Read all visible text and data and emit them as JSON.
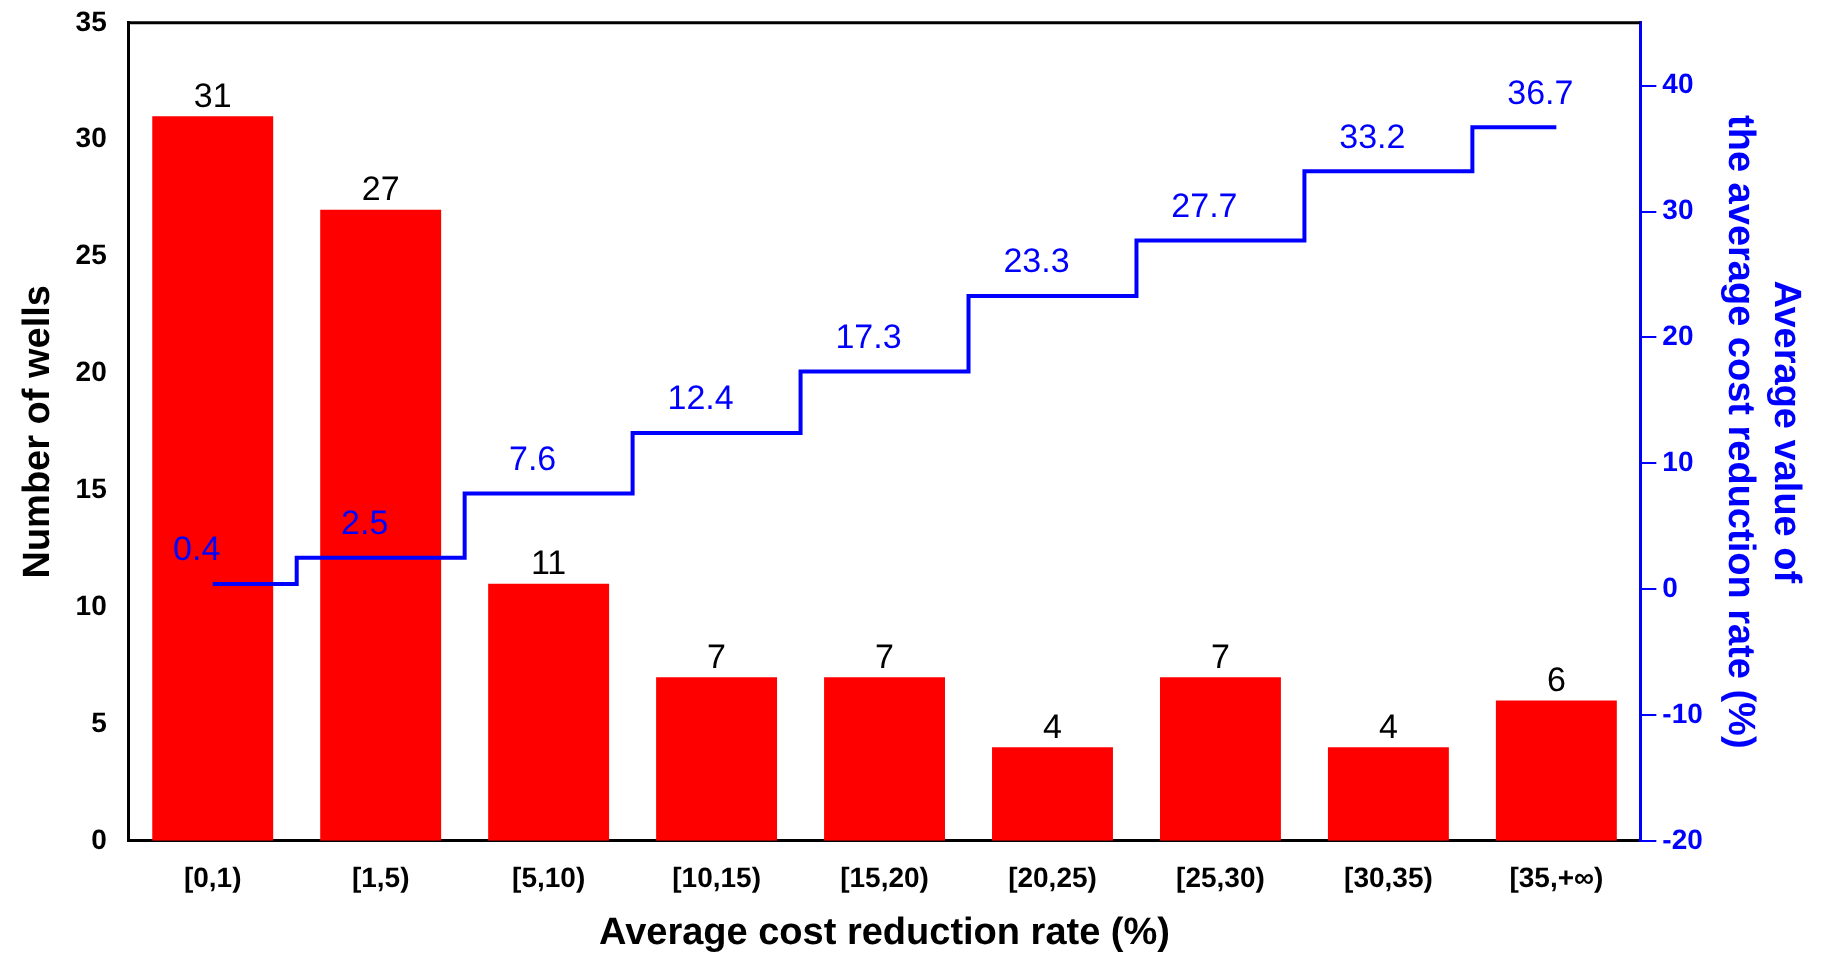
{
  "chart_data": {
    "type": "bar",
    "xlabel": "Average cost reduction rate (%)",
    "ylabel": "Number of wells",
    "y2label": "Average value of\nthe average cost reduction rate (%)",
    "categories": [
      "[0,1)",
      "[1,5)",
      "[5,10)",
      "[10,15)",
      "[15,20)",
      "[20,25)",
      "[25,30)",
      "[30,35)",
      "[35,+∞)"
    ],
    "series": [
      {
        "color": "#ff0000",
        "values": [
          31,
          27,
          11,
          7,
          7,
          4,
          7,
          4,
          6
        ]
      },
      {
        "type": "step",
        "axis": "y2",
        "color": "#0000ff",
        "values": [
          0.4,
          2.5,
          7.6,
          12.4,
          17.3,
          23.3,
          27.7,
          33.2,
          36.7
        ]
      }
    ],
    "ylim": [
      0,
      35
    ],
    "yticks": [
      0,
      5,
      10,
      15,
      20,
      25,
      30,
      35
    ],
    "y2lim": [
      -20,
      45
    ],
    "y2ticks": [
      -20,
      -10,
      0,
      10,
      20,
      30,
      40
    ],
    "grid": false,
    "legend": false,
    "data_labels": true
  }
}
